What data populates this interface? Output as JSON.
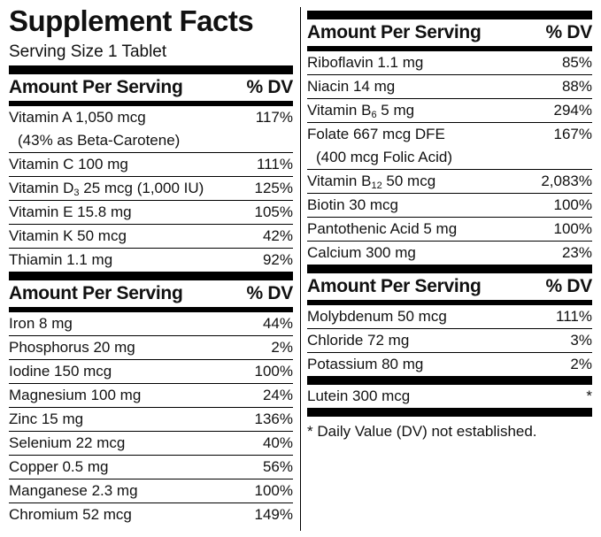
{
  "left": {
    "title": "Supplement Facts",
    "serving": "Serving Size 1 Tablet",
    "sections": [
      {
        "header": {
          "amount": "Amount Per Serving",
          "dv": "% DV"
        },
        "rows": [
          {
            "label": [
              "Vitamin A 1,050 mcg"
            ],
            "note": "(43% as Beta-Carotene)",
            "dv": "117%"
          },
          {
            "label": [
              "Vitamin C 100 mg"
            ],
            "dv": "111%"
          },
          {
            "label": [
              "Vitamin D",
              {
                "sub": "3"
              },
              " 25 mcg (1,000 IU)"
            ],
            "dv": "125%"
          },
          {
            "label": [
              "Vitamin E 15.8 mg"
            ],
            "dv": "105%"
          },
          {
            "label": [
              "Vitamin K 50 mcg"
            ],
            "dv": "42%"
          },
          {
            "label": [
              "Thiamin 1.1 mg"
            ],
            "dv": "92%"
          }
        ]
      },
      {
        "header": {
          "amount": "Amount Per Serving",
          "dv": "% DV"
        },
        "rows": [
          {
            "label": [
              "Iron 8 mg"
            ],
            "dv": "44%"
          },
          {
            "label": [
              "Phosphorus 20 mg"
            ],
            "dv": "2%"
          },
          {
            "label": [
              "Iodine 150 mcg"
            ],
            "dv": "100%"
          },
          {
            "label": [
              "Magnesium 100 mg"
            ],
            "dv": "24%"
          },
          {
            "label": [
              "Zinc 15 mg"
            ],
            "dv": "136%"
          },
          {
            "label": [
              "Selenium 22 mcg"
            ],
            "dv": "40%"
          },
          {
            "label": [
              "Copper 0.5 mg"
            ],
            "dv": "56%"
          },
          {
            "label": [
              "Manganese 2.3 mg"
            ],
            "dv": "100%"
          },
          {
            "label": [
              "Chromium 52 mcg"
            ],
            "dv": "149%"
          }
        ]
      }
    ]
  },
  "right": {
    "sections": [
      {
        "header": {
          "amount": "Amount Per Serving",
          "dv": "% DV"
        },
        "rows": [
          {
            "label": [
              "Riboflavin 1.1 mg"
            ],
            "dv": "85%"
          },
          {
            "label": [
              "Niacin 14 mg"
            ],
            "dv": "88%"
          },
          {
            "label": [
              "Vitamin B",
              {
                "sub": "6"
              },
              " 5 mg"
            ],
            "dv": "294%"
          },
          {
            "label": [
              "Folate 667 mcg DFE"
            ],
            "note": "(400 mcg Folic Acid)",
            "dv": "167%"
          },
          {
            "label": [
              "Vitamin B",
              {
                "sub": "12"
              },
              " 50 mcg"
            ],
            "dv": "2,083%"
          },
          {
            "label": [
              "Biotin 30 mcg"
            ],
            "dv": "100%"
          },
          {
            "label": [
              "Pantothenic Acid 5 mg"
            ],
            "dv": "100%"
          },
          {
            "label": [
              "Calcium 300 mg"
            ],
            "dv": "23%"
          }
        ]
      },
      {
        "header": {
          "amount": "Amount Per Serving",
          "dv": "% DV"
        },
        "rows": [
          {
            "label": [
              "Molybdenum 50 mcg"
            ],
            "dv": "111%"
          },
          {
            "label": [
              "Chloride 72 mg"
            ],
            "dv": "3%"
          },
          {
            "label": [
              "Potassium 80 mg"
            ],
            "dv": "2%"
          }
        ]
      },
      {
        "rows": [
          {
            "label": [
              "Lutein 300 mcg"
            ],
            "dv": "*"
          }
        ]
      }
    ],
    "footnote": "* Daily Value (DV) not established."
  }
}
